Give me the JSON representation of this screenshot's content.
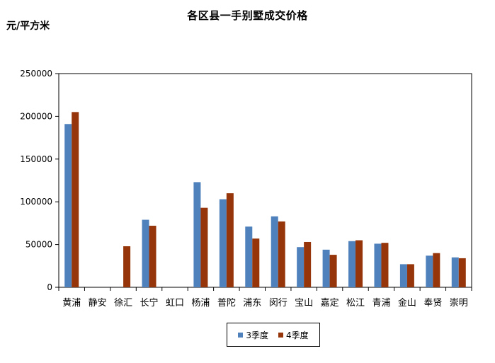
{
  "chart_data": {
    "type": "bar",
    "title": "各区县一手别墅成交价格",
    "ylabel": "元/平方米",
    "xlabel": "",
    "ylim": [
      0,
      250000
    ],
    "yticks": [
      "0",
      "50000",
      "100000",
      "150000",
      "200000",
      "250000"
    ],
    "grid": false,
    "legend_position": "bottom",
    "categories": [
      "黄浦",
      "静安",
      "徐汇",
      "长宁",
      "虹口",
      "杨浦",
      "普陀",
      "浦东",
      "闵行",
      "宝山",
      "嘉定",
      "松江",
      "青浦",
      "金山",
      "奉贤",
      "崇明"
    ],
    "series": [
      {
        "name": "3季度",
        "color": "#4F81BD",
        "values": [
          191000,
          0,
          0,
          79000,
          0,
          123000,
          103000,
          71000,
          83000,
          47000,
          44000,
          54000,
          51000,
          27000,
          37000,
          35000
        ]
      },
      {
        "name": "4季度",
        "color": "#953509",
        "values": [
          205000,
          0,
          48000,
          72000,
          0,
          93000,
          110000,
          57000,
          77000,
          53000,
          38000,
          55000,
          52000,
          27000,
          40000,
          34000
        ]
      }
    ]
  }
}
